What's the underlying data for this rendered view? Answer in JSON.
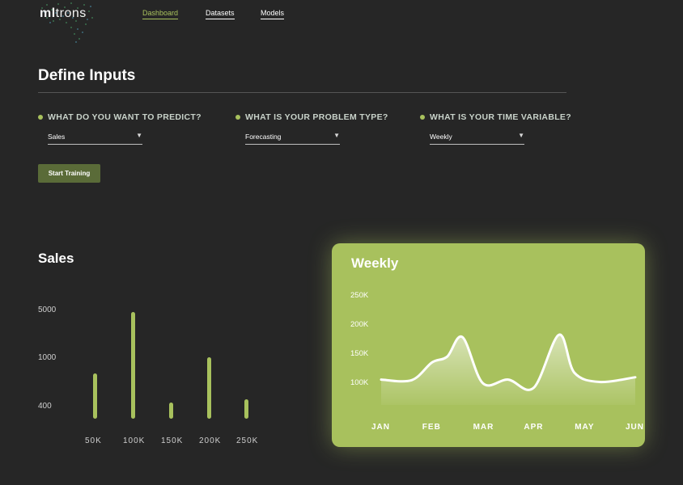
{
  "logo": {
    "text_bold": "ml",
    "text_light": "trons",
    "icon": "brain-icon"
  },
  "nav": {
    "items": [
      {
        "label": "Dashboard",
        "active": true
      },
      {
        "label": "Datasets",
        "active": false
      },
      {
        "label": "Models",
        "active": false
      }
    ]
  },
  "page": {
    "title": "Define Inputs"
  },
  "inputs": [
    {
      "question": "WHAT DO YOU WANT TO PREDICT?",
      "value": "Sales"
    },
    {
      "question": "WHAT IS YOUR PROBLEM TYPE?",
      "value": "Forecasting"
    },
    {
      "question": "WHAT IS YOUR TIME VARIABLE?",
      "value": "Weekly"
    }
  ],
  "actions": {
    "start_training": "Start Training"
  },
  "colors": {
    "accent": "#a8c15d",
    "background": "#262626",
    "button": "#5a6b38"
  },
  "chart_data": [
    {
      "type": "bar",
      "title": "Sales",
      "categories": [
        "50K",
        "100K",
        "150K",
        "200K",
        "250K"
      ],
      "y_tick_labels": [
        "5000",
        "1000",
        "400"
      ],
      "values": [
        2300,
        5400,
        800,
        3100,
        1000
      ],
      "grid": false
    },
    {
      "type": "area",
      "title": "Weekly",
      "x": [
        "JAN",
        "FEB",
        "MAR",
        "APR",
        "MAY",
        "JUN"
      ],
      "y_tick_labels": [
        "250K",
        "200K",
        "150K",
        "100K"
      ],
      "ylim": [
        50,
        250
      ],
      "points": [
        [
          0,
          106
        ],
        [
          0.6,
          105
        ],
        [
          1.0,
          135
        ],
        [
          1.3,
          145
        ],
        [
          1.6,
          178
        ],
        [
          2.0,
          100
        ],
        [
          2.5,
          106
        ],
        [
          3.0,
          92
        ],
        [
          3.5,
          182
        ],
        [
          3.8,
          118
        ],
        [
          4.3,
          102
        ],
        [
          5.0,
          110
        ]
      ],
      "grid": false
    }
  ]
}
